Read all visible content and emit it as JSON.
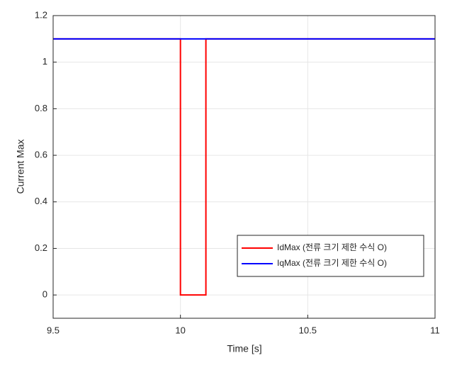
{
  "chart_data": {
    "type": "line",
    "xlabel": "Time [s]",
    "ylabel": "Current Max",
    "xlim": [
      9.5,
      11
    ],
    "xticks": [
      9.5,
      10,
      10.5,
      11
    ],
    "ylim": [
      -0.1,
      1.2
    ],
    "yticks": [
      0,
      0.2,
      0.4,
      0.6,
      0.8,
      1,
      1.2
    ],
    "grid": true,
    "legend_location": "southeast",
    "series": [
      {
        "name": "IdMax (전류 크기 제한 수식 O)",
        "color": "#ff0000",
        "x": [
          9.5,
          10,
          10,
          10.1,
          10.1,
          11
        ],
        "values": [
          1.1,
          1.1,
          0,
          0,
          1.1,
          1.1
        ]
      },
      {
        "name": "IqMax (전류 크기 제한 수식 O)",
        "color": "#0000ff",
        "x": [
          9.5,
          11
        ],
        "values": [
          1.1,
          1.1
        ]
      }
    ]
  }
}
